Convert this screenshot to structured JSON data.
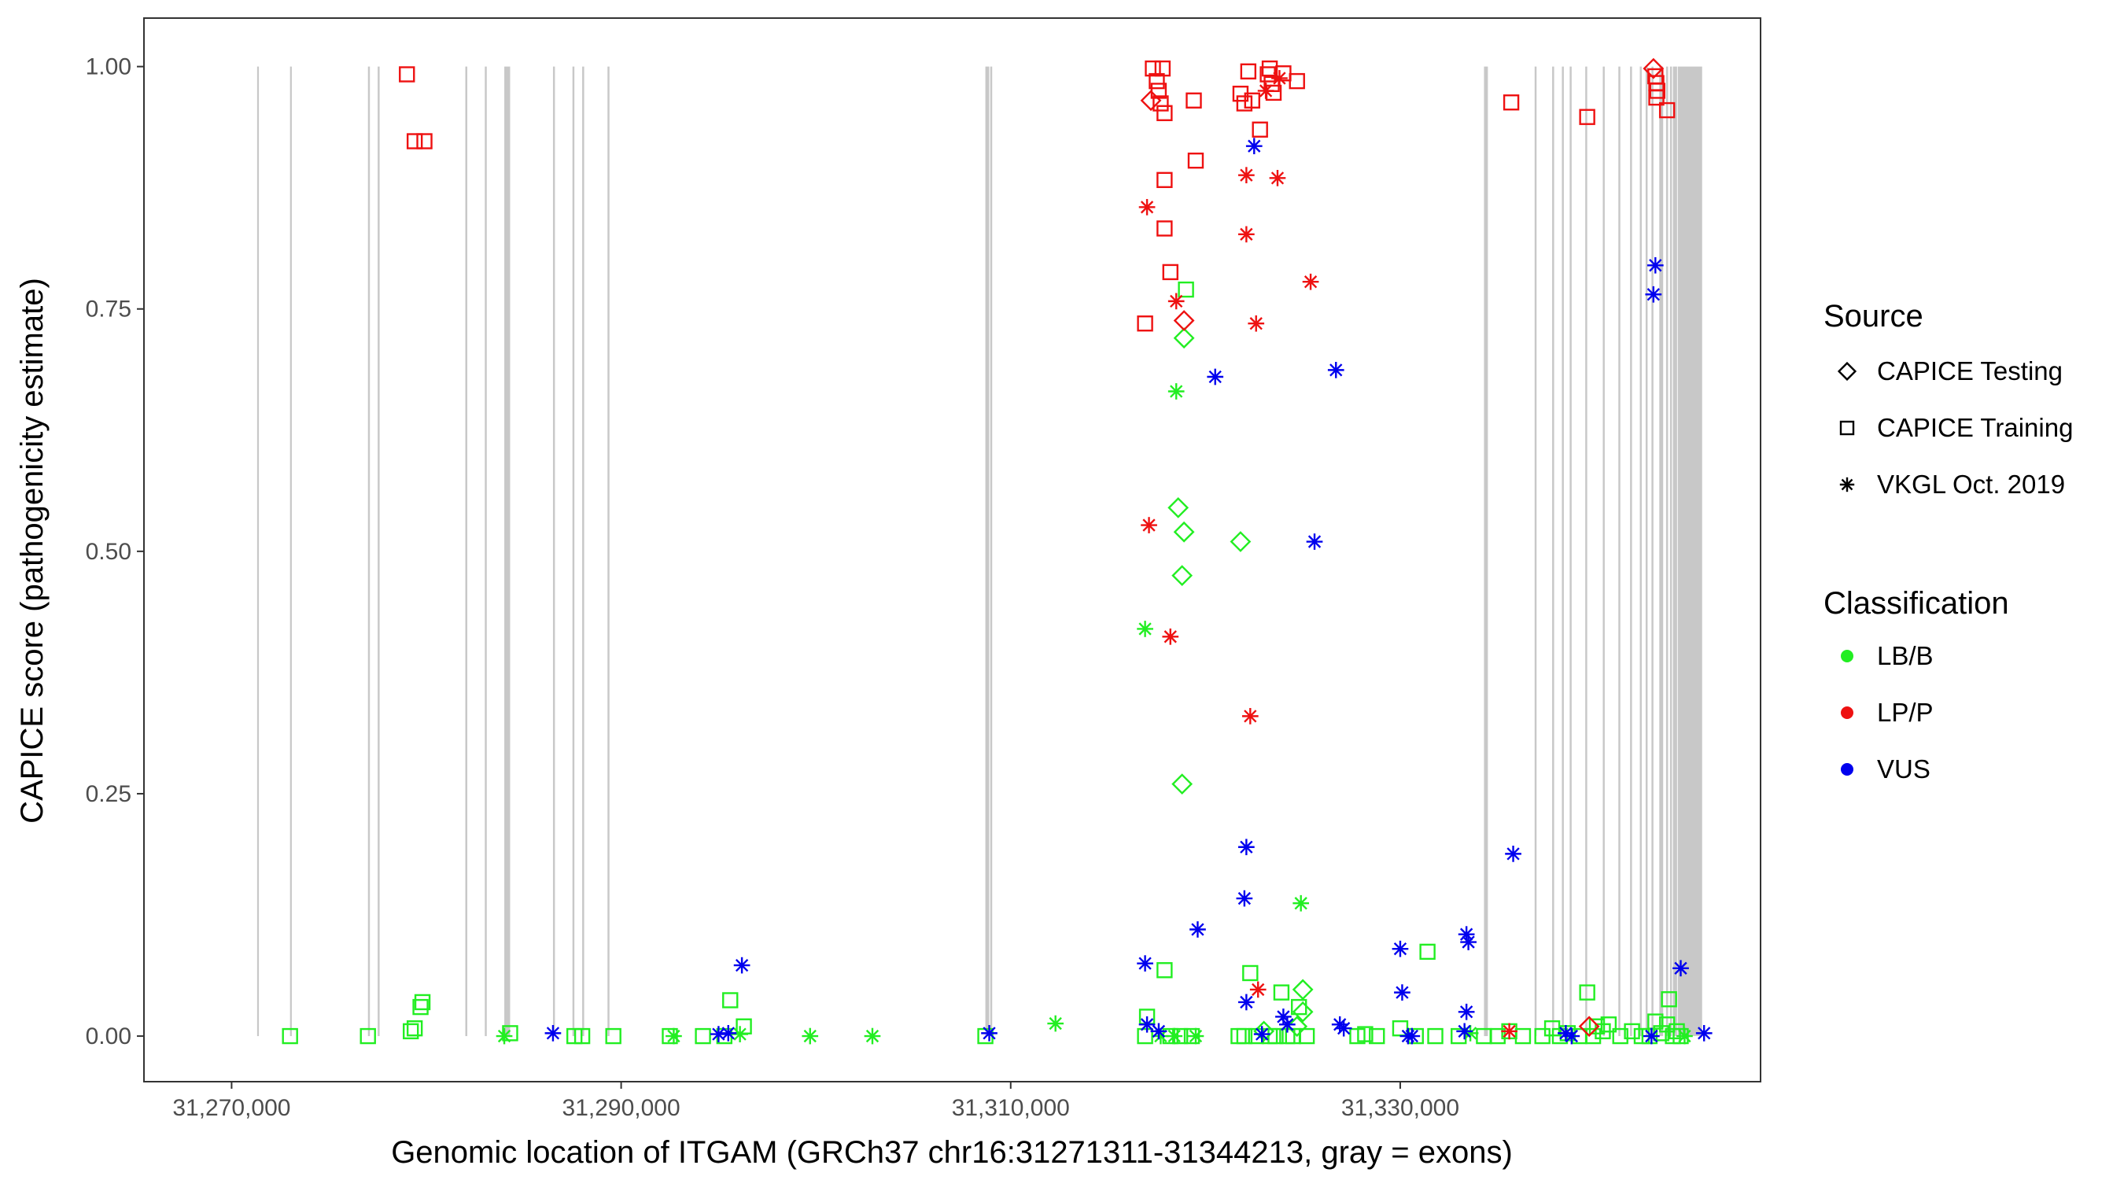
{
  "chart_data": {
    "type": "scatter",
    "title": "",
    "xlabel": "Genomic location of ITGAM (GRCh37 chr16:31271311-31344213, gray = exons)",
    "ylabel": "CAPICE score (pathogenicity estimate)",
    "xlim": [
      31265500,
      31348500
    ],
    "ylim": [
      -0.047,
      1.05
    ],
    "x_ticks": [
      31270000,
      31290000,
      31310000,
      31330000
    ],
    "x_tick_labels": [
      "31,270,000",
      "31,290,000",
      "31,310,000",
      "31,330,000"
    ],
    "y_ticks": [
      0,
      0.25,
      0.5,
      0.75,
      1.0
    ],
    "y_tick_labels": [
      "0.00",
      "0.25",
      "0.50",
      "0.75",
      "1.00"
    ],
    "exon_color": "#c8c8c8",
    "exons": [
      [
        31271311,
        31271400
      ],
      [
        31273000,
        31273090
      ],
      [
        31277000,
        31277100
      ],
      [
        31277500,
        31277600
      ],
      [
        31282000,
        31282100
      ],
      [
        31283000,
        31283100
      ],
      [
        31284000,
        31284300
      ],
      [
        31286500,
        31286600
      ],
      [
        31287500,
        31287600
      ],
      [
        31288000,
        31288100
      ],
      [
        31289300,
        31289400
      ],
      [
        31308700,
        31308900
      ],
      [
        31308950,
        31309050
      ],
      [
        31334300,
        31334500
      ],
      [
        31336900,
        31337000
      ],
      [
        31337800,
        31337900
      ],
      [
        31338300,
        31338400
      ],
      [
        31338700,
        31338800
      ],
      [
        31339500,
        31339600
      ],
      [
        31340400,
        31340500
      ],
      [
        31341200,
        31341300
      ],
      [
        31341800,
        31341900
      ],
      [
        31342300,
        31342400
      ],
      [
        31342600,
        31342700
      ],
      [
        31342900,
        31343000
      ],
      [
        31343300,
        31343500
      ],
      [
        31343650,
        31343750
      ],
      [
        31343850,
        31343950
      ],
      [
        31344000,
        31344213
      ],
      [
        31344250,
        31345500
      ]
    ],
    "legend": {
      "source_title": "Source",
      "source_items": [
        {
          "label": "CAPICE Testing",
          "shape": "diamond"
        },
        {
          "label": "CAPICE Training",
          "shape": "square"
        },
        {
          "label": "VKGL Oct. 2019",
          "shape": "asterisk"
        }
      ],
      "class_title": "Classification",
      "class_items": [
        {
          "label": "LB/B",
          "color": "#22ee22"
        },
        {
          "label": "LP/P",
          "color": "#ee1111"
        },
        {
          "label": "VUS",
          "color": "#0000ee"
        }
      ]
    },
    "series": [
      {
        "name": "LB/B",
        "color": "#22ee22",
        "points": [
          [
            31273000,
            0.0,
            "square"
          ],
          [
            31277000,
            0.0,
            "square"
          ],
          [
            31279200,
            0.005,
            "square"
          ],
          [
            31279400,
            0.008,
            "square"
          ],
          [
            31279700,
            0.03,
            "square"
          ],
          [
            31279800,
            0.035,
            "square"
          ],
          [
            31284000,
            0.0,
            "asterisk"
          ],
          [
            31284300,
            0.003,
            "square"
          ],
          [
            31287600,
            0.0,
            "square"
          ],
          [
            31288000,
            0.0,
            "square"
          ],
          [
            31289600,
            0.0,
            "square"
          ],
          [
            31292500,
            0.0,
            "square"
          ],
          [
            31292700,
            0.0,
            "asterisk"
          ],
          [
            31294200,
            0.0,
            "square"
          ],
          [
            31295300,
            0.0,
            "square"
          ],
          [
            31295600,
            0.037,
            "square"
          ],
          [
            31296100,
            0.002,
            "asterisk"
          ],
          [
            31296300,
            0.01,
            "square"
          ],
          [
            31299700,
            0.0,
            "asterisk"
          ],
          [
            31302900,
            0.0,
            "asterisk"
          ],
          [
            31308700,
            0.0,
            "square"
          ],
          [
            31312300,
            0.013,
            "asterisk"
          ],
          [
            31316900,
            0.0,
            "square"
          ],
          [
            31317000,
            0.02,
            "square"
          ],
          [
            31316900,
            0.42,
            "asterisk"
          ],
          [
            31317700,
            0.0,
            "asterisk"
          ],
          [
            31317900,
            0.068,
            "square"
          ],
          [
            31318200,
            0.0,
            "square"
          ],
          [
            31318400,
            0.0,
            "asterisk"
          ],
          [
            31318600,
            0.545,
            "diamond"
          ],
          [
            31318500,
            0.665,
            "asterisk"
          ],
          [
            31318700,
            0.0,
            "square"
          ],
          [
            31318800,
            0.26,
            "diamond"
          ],
          [
            31318800,
            0.475,
            "diamond"
          ],
          [
            31318900,
            0.52,
            "diamond"
          ],
          [
            31318900,
            0.72,
            "diamond"
          ],
          [
            31319000,
            0.77,
            "square"
          ],
          [
            31319300,
            0.0,
            "square"
          ],
          [
            31319500,
            0.0,
            "asterisk"
          ],
          [
            31321700,
            0.0,
            "square"
          ],
          [
            31321800,
            0.51,
            "diamond"
          ],
          [
            31322000,
            0.0,
            "square"
          ],
          [
            31322300,
            0.065,
            "square"
          ],
          [
            31322600,
            0.0,
            "square"
          ],
          [
            31323000,
            0.005,
            "diamond"
          ],
          [
            31323300,
            0.0,
            "square"
          ],
          [
            31323600,
            0.0,
            "square"
          ],
          [
            31323900,
            0.045,
            "square"
          ],
          [
            31324200,
            0.0,
            "square"
          ],
          [
            31324500,
            0.0,
            "square"
          ],
          [
            31324700,
            0.01,
            "diamond"
          ],
          [
            31324800,
            0.03,
            "square"
          ],
          [
            31325000,
            0.048,
            "diamond"
          ],
          [
            31325000,
            0.025,
            "diamond"
          ],
          [
            31324900,
            0.137,
            "asterisk"
          ],
          [
            31325200,
            0.0,
            "square"
          ],
          [
            31327800,
            0.0,
            "square"
          ],
          [
            31328200,
            0.002,
            "square"
          ],
          [
            31328800,
            0.0,
            "square"
          ],
          [
            31330000,
            0.008,
            "square"
          ],
          [
            31330800,
            0.0,
            "square"
          ],
          [
            31331400,
            0.087,
            "square"
          ],
          [
            31331800,
            0.0,
            "square"
          ],
          [
            31333000,
            0.0,
            "square"
          ],
          [
            31333600,
            0.003,
            "asterisk"
          ],
          [
            31334300,
            0.0,
            "square"
          ],
          [
            31335000,
            0.0,
            "square"
          ],
          [
            31335600,
            0.005,
            "square"
          ],
          [
            31336300,
            0.0,
            "square"
          ],
          [
            31337300,
            0.0,
            "square"
          ],
          [
            31337800,
            0.008,
            "square"
          ],
          [
            31338200,
            0.0,
            "square"
          ],
          [
            31338600,
            0.003,
            "square"
          ],
          [
            31339200,
            0.0,
            "square"
          ],
          [
            31339600,
            0.045,
            "square"
          ],
          [
            31339900,
            0.0,
            "square"
          ],
          [
            31340100,
            0.01,
            "square"
          ],
          [
            31340400,
            0.005,
            "square"
          ],
          [
            31340700,
            0.012,
            "square"
          ],
          [
            31341300,
            0.0,
            "square"
          ],
          [
            31341900,
            0.005,
            "square"
          ],
          [
            31342400,
            0.0,
            "square"
          ],
          [
            31342800,
            0.0,
            "square"
          ],
          [
            31343100,
            0.015,
            "square"
          ],
          [
            31343400,
            0.003,
            "square"
          ],
          [
            31343700,
            0.012,
            "square"
          ],
          [
            31343800,
            0.038,
            "square"
          ],
          [
            31344000,
            0.0,
            "square"
          ],
          [
            31344200,
            0.005,
            "square"
          ],
          [
            31344400,
            0.0,
            "square"
          ],
          [
            31344600,
            0.0,
            "asterisk"
          ]
        ]
      },
      {
        "name": "LP/P",
        "color": "#ee1111",
        "points": [
          [
            31279000,
            0.992,
            "square"
          ],
          [
            31279400,
            0.923,
            "square"
          ],
          [
            31279900,
            0.923,
            "square"
          ],
          [
            31316900,
            0.735,
            "square"
          ],
          [
            31317000,
            0.855,
            "asterisk"
          ],
          [
            31317100,
            0.527,
            "asterisk"
          ],
          [
            31317200,
            0.965,
            "diamond"
          ],
          [
            31317300,
            0.998,
            "square"
          ],
          [
            31317500,
            0.985,
            "square"
          ],
          [
            31317600,
            0.975,
            "square"
          ],
          [
            31317700,
            0.962,
            "square"
          ],
          [
            31317800,
            0.998,
            "square"
          ],
          [
            31317900,
            0.952,
            "square"
          ],
          [
            31317900,
            0.883,
            "square"
          ],
          [
            31317900,
            0.833,
            "square"
          ],
          [
            31318200,
            0.788,
            "square"
          ],
          [
            31318200,
            0.412,
            "asterisk"
          ],
          [
            31318500,
            0.758,
            "asterisk"
          ],
          [
            31318900,
            0.738,
            "diamond"
          ],
          [
            31319400,
            0.965,
            "square"
          ],
          [
            31319500,
            0.903,
            "square"
          ],
          [
            31321800,
            0.972,
            "square"
          ],
          [
            31322000,
            0.962,
            "square"
          ],
          [
            31322200,
            0.995,
            "square"
          ],
          [
            31322100,
            0.888,
            "asterisk"
          ],
          [
            31322100,
            0.827,
            "asterisk"
          ],
          [
            31322300,
            0.33,
            "asterisk"
          ],
          [
            31322400,
            0.965,
            "square"
          ],
          [
            31322600,
            0.735,
            "asterisk"
          ],
          [
            31322700,
            0.048,
            "asterisk"
          ],
          [
            31322800,
            0.935,
            "square"
          ],
          [
            31323100,
            0.975,
            "asterisk"
          ],
          [
            31323200,
            0.992,
            "square"
          ],
          [
            31323300,
            0.998,
            "square"
          ],
          [
            31323400,
            0.982,
            "square"
          ],
          [
            31323500,
            0.973,
            "square"
          ],
          [
            31323700,
            0.885,
            "asterisk"
          ],
          [
            31323800,
            0.988,
            "asterisk"
          ],
          [
            31324000,
            0.993,
            "square"
          ],
          [
            31324700,
            0.985,
            "square"
          ],
          [
            31325400,
            0.778,
            "asterisk"
          ],
          [
            31335700,
            0.963,
            "square"
          ],
          [
            31335600,
            0.005,
            "asterisk"
          ],
          [
            31339600,
            0.948,
            "square"
          ],
          [
            31339700,
            0.01,
            "diamond"
          ],
          [
            31343000,
            0.998,
            "diamond"
          ],
          [
            31343100,
            0.99,
            "square"
          ],
          [
            31343150,
            0.983,
            "square"
          ],
          [
            31343200,
            0.975,
            "square"
          ],
          [
            31343150,
            0.968,
            "square"
          ],
          [
            31343700,
            0.955,
            "square"
          ]
        ]
      },
      {
        "name": "VUS",
        "color": "#0000ee",
        "points": [
          [
            31286500,
            0.003,
            "asterisk"
          ],
          [
            31295000,
            0.002,
            "asterisk"
          ],
          [
            31295500,
            0.003,
            "asterisk"
          ],
          [
            31296200,
            0.073,
            "asterisk"
          ],
          [
            31308900,
            0.003,
            "asterisk"
          ],
          [
            31316900,
            0.075,
            "asterisk"
          ],
          [
            31317000,
            0.012,
            "asterisk"
          ],
          [
            31317600,
            0.005,
            "asterisk"
          ],
          [
            31319600,
            0.11,
            "asterisk"
          ],
          [
            31320500,
            0.68,
            "asterisk"
          ],
          [
            31322100,
            0.195,
            "asterisk"
          ],
          [
            31322000,
            0.142,
            "asterisk"
          ],
          [
            31322100,
            0.035,
            "asterisk"
          ],
          [
            31322500,
            0.918,
            "asterisk"
          ],
          [
            31322900,
            0.002,
            "asterisk"
          ],
          [
            31324000,
            0.02,
            "asterisk"
          ],
          [
            31324200,
            0.012,
            "asterisk"
          ],
          [
            31325600,
            0.51,
            "asterisk"
          ],
          [
            31326700,
            0.687,
            "asterisk"
          ],
          [
            31326900,
            0.012,
            "asterisk"
          ],
          [
            31327100,
            0.008,
            "asterisk"
          ],
          [
            31330000,
            0.09,
            "asterisk"
          ],
          [
            31330100,
            0.045,
            "asterisk"
          ],
          [
            31330400,
            0.0,
            "asterisk"
          ],
          [
            31330600,
            0.0,
            "asterisk"
          ],
          [
            31333400,
            0.105,
            "asterisk"
          ],
          [
            31333500,
            0.097,
            "asterisk"
          ],
          [
            31333400,
            0.025,
            "asterisk"
          ],
          [
            31333300,
            0.005,
            "asterisk"
          ],
          [
            31335800,
            0.188,
            "asterisk"
          ],
          [
            31338500,
            0.003,
            "asterisk"
          ],
          [
            31338800,
            0.0,
            "asterisk"
          ],
          [
            31343100,
            0.795,
            "asterisk"
          ],
          [
            31343000,
            0.765,
            "asterisk"
          ],
          [
            31342900,
            0.0,
            "asterisk"
          ],
          [
            31344400,
            0.07,
            "asterisk"
          ],
          [
            31345600,
            0.003,
            "asterisk"
          ]
        ]
      }
    ]
  }
}
